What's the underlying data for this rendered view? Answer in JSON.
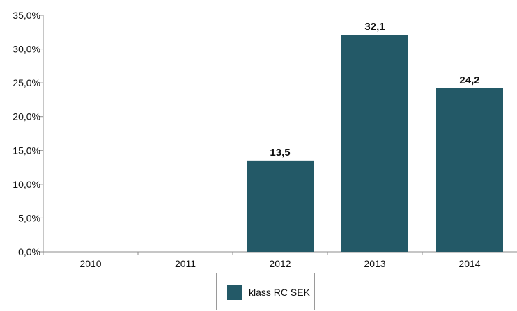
{
  "chart_data": {
    "type": "bar",
    "categories": [
      "2010",
      "2011",
      "2012",
      "2013",
      "2014"
    ],
    "series": [
      {
        "name": "klass RC SEK",
        "values": [
          null,
          null,
          13.5,
          32.1,
          24.2
        ],
        "color": "#235967"
      }
    ],
    "data_labels": [
      "",
      "",
      "13,5",
      "32,1",
      "24,2"
    ],
    "yticks": [
      "0,0%",
      "5,0%",
      "10,0%",
      "15,0%",
      "20,0%",
      "25,0%",
      "30,0%",
      "35,0%"
    ],
    "ylim": [
      0,
      35
    ],
    "grid": false,
    "legend_position": "bottom-center"
  }
}
